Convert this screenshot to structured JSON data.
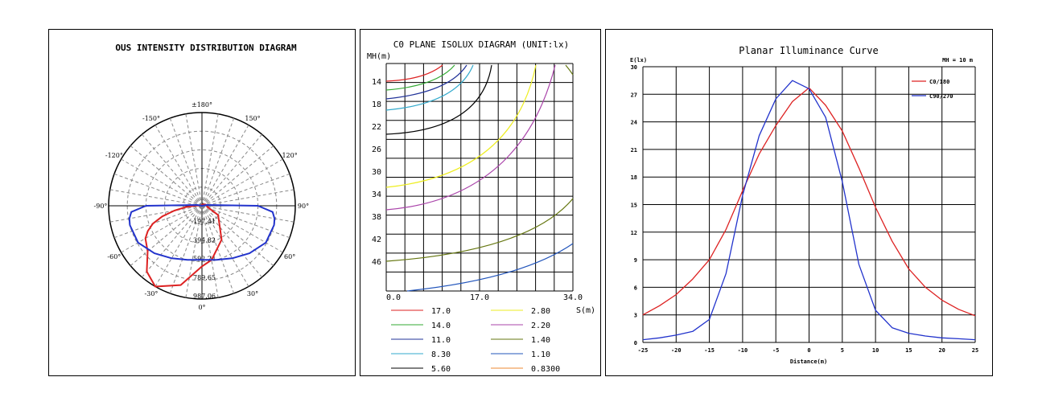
{
  "colors": {
    "red": "#dd2222",
    "blue": "#2233cc",
    "grid": "#000000",
    "dashed": "#888888"
  },
  "chart_data": [
    {
      "type": "polar",
      "title": "OUS INTENSITY DISTRIBUTION DIAGRAM",
      "angle_labels": [
        {
          "deg": 0,
          "label": "0°"
        },
        {
          "deg": -30,
          "label": "-30°"
        },
        {
          "deg": 30,
          "label": "30°"
        },
        {
          "deg": -60,
          "label": "-60°"
        },
        {
          "deg": 60,
          "label": "60°"
        },
        {
          "deg": -90,
          "label": "-90°"
        },
        {
          "deg": 90,
          "label": "90°"
        },
        {
          "deg": -120,
          "label": "-120°"
        },
        {
          "deg": 120,
          "label": "120°"
        },
        {
          "deg": -150,
          "label": "-150°"
        },
        {
          "deg": 150,
          "label": "150°"
        },
        {
          "deg": 180,
          "label": "±180°"
        }
      ],
      "radial_labels": [
        "197.41",
        "394.82",
        "592.24",
        "789.65",
        "987.06"
      ],
      "rmax": 1000,
      "series": [
        {
          "color": "red",
          "angles": [
            0,
            -15,
            -30,
            -40,
            -50,
            -60,
            -65,
            -70,
            -75,
            -80,
            -85,
            -90,
            -100,
            -130,
            -180,
            -220,
            -250,
            -270,
            -280,
            -300,
            -330,
            -350,
            -360
          ],
          "values": [
            650,
            880,
            1000,
            920,
            760,
            700,
            640,
            560,
            440,
            300,
            180,
            80,
            20,
            10,
            10,
            20,
            40,
            60,
            55,
            200,
            420,
            590,
            650
          ]
        },
        {
          "color": "blue",
          "angles": [
            0,
            15,
            30,
            45,
            60,
            75,
            80,
            85,
            90,
            100,
            180,
            260,
            270,
            275,
            280,
            285,
            300,
            315,
            330,
            345,
            360
          ],
          "values": [
            580,
            600,
            650,
            720,
            790,
            800,
            790,
            760,
            600,
            50,
            0,
            50,
            600,
            760,
            790,
            800,
            790,
            720,
            650,
            600,
            580
          ]
        }
      ]
    },
    {
      "type": "contour",
      "title": "C0 PLANE ISOLUX DIAGRAM (UNIT:lx)",
      "ylabel": "MH(m)",
      "xlabel": "S(m)",
      "xticks": [
        "0.0",
        "17.0",
        "34.0"
      ],
      "yticks": [
        "14",
        "18",
        "22",
        "26",
        "30",
        "34",
        "38",
        "42",
        "46"
      ],
      "levels": [
        {
          "value": "17.0",
          "color": "#dd2222"
        },
        {
          "value": "2.80",
          "color": "#eeee22"
        },
        {
          "value": "14.0",
          "color": "#33aa33"
        },
        {
          "value": "2.20",
          "color": "#aa44aa"
        },
        {
          "value": "11.0",
          "color": "#223399"
        },
        {
          "value": "1.40",
          "color": "#667711"
        },
        {
          "value": "8.30",
          "color": "#33aacc"
        },
        {
          "value": "1.10",
          "color": "#2255bb"
        },
        {
          "value": "5.60",
          "color": "#000000"
        },
        {
          "value": "0.8300",
          "color": "#ee8833"
        }
      ]
    },
    {
      "type": "line",
      "title": "Planar Illuminance Curve",
      "ylabel": "E(lx)",
      "xlabel": "Distance(m)",
      "annotation": "MH = 10 m",
      "xlim": [
        -25,
        25
      ],
      "ylim": [
        0,
        30
      ],
      "xticks": [
        -25,
        -20,
        -15,
        -10,
        -5,
        0,
        5,
        10,
        15,
        20,
        25
      ],
      "yticks": [
        0,
        3,
        6,
        9,
        12,
        15,
        18,
        21,
        24,
        27,
        30
      ],
      "x": [
        -25,
        -22.5,
        -20,
        -17.5,
        -15,
        -12.5,
        -10,
        -7.5,
        -5,
        -2.5,
        0,
        2.5,
        5,
        7.5,
        10,
        12.5,
        15,
        17.5,
        20,
        22.5,
        25
      ],
      "series": [
        {
          "name": "C0/180",
          "color": "red",
          "values": [
            3.0,
            4.0,
            5.2,
            6.9,
            9.0,
            12.3,
            16.5,
            20.5,
            23.6,
            26.2,
            27.7,
            25.8,
            23.0,
            19.0,
            14.7,
            11.0,
            8.0,
            6.0,
            4.6,
            3.6,
            2.9
          ]
        },
        {
          "name": "C90/270",
          "color": "blue",
          "values": [
            0.3,
            0.5,
            0.8,
            1.2,
            2.5,
            7.5,
            16.0,
            22.5,
            26.5,
            28.5,
            27.6,
            24.5,
            17.5,
            8.5,
            3.5,
            1.6,
            1.0,
            0.7,
            0.5,
            0.4,
            0.3
          ]
        }
      ]
    }
  ]
}
